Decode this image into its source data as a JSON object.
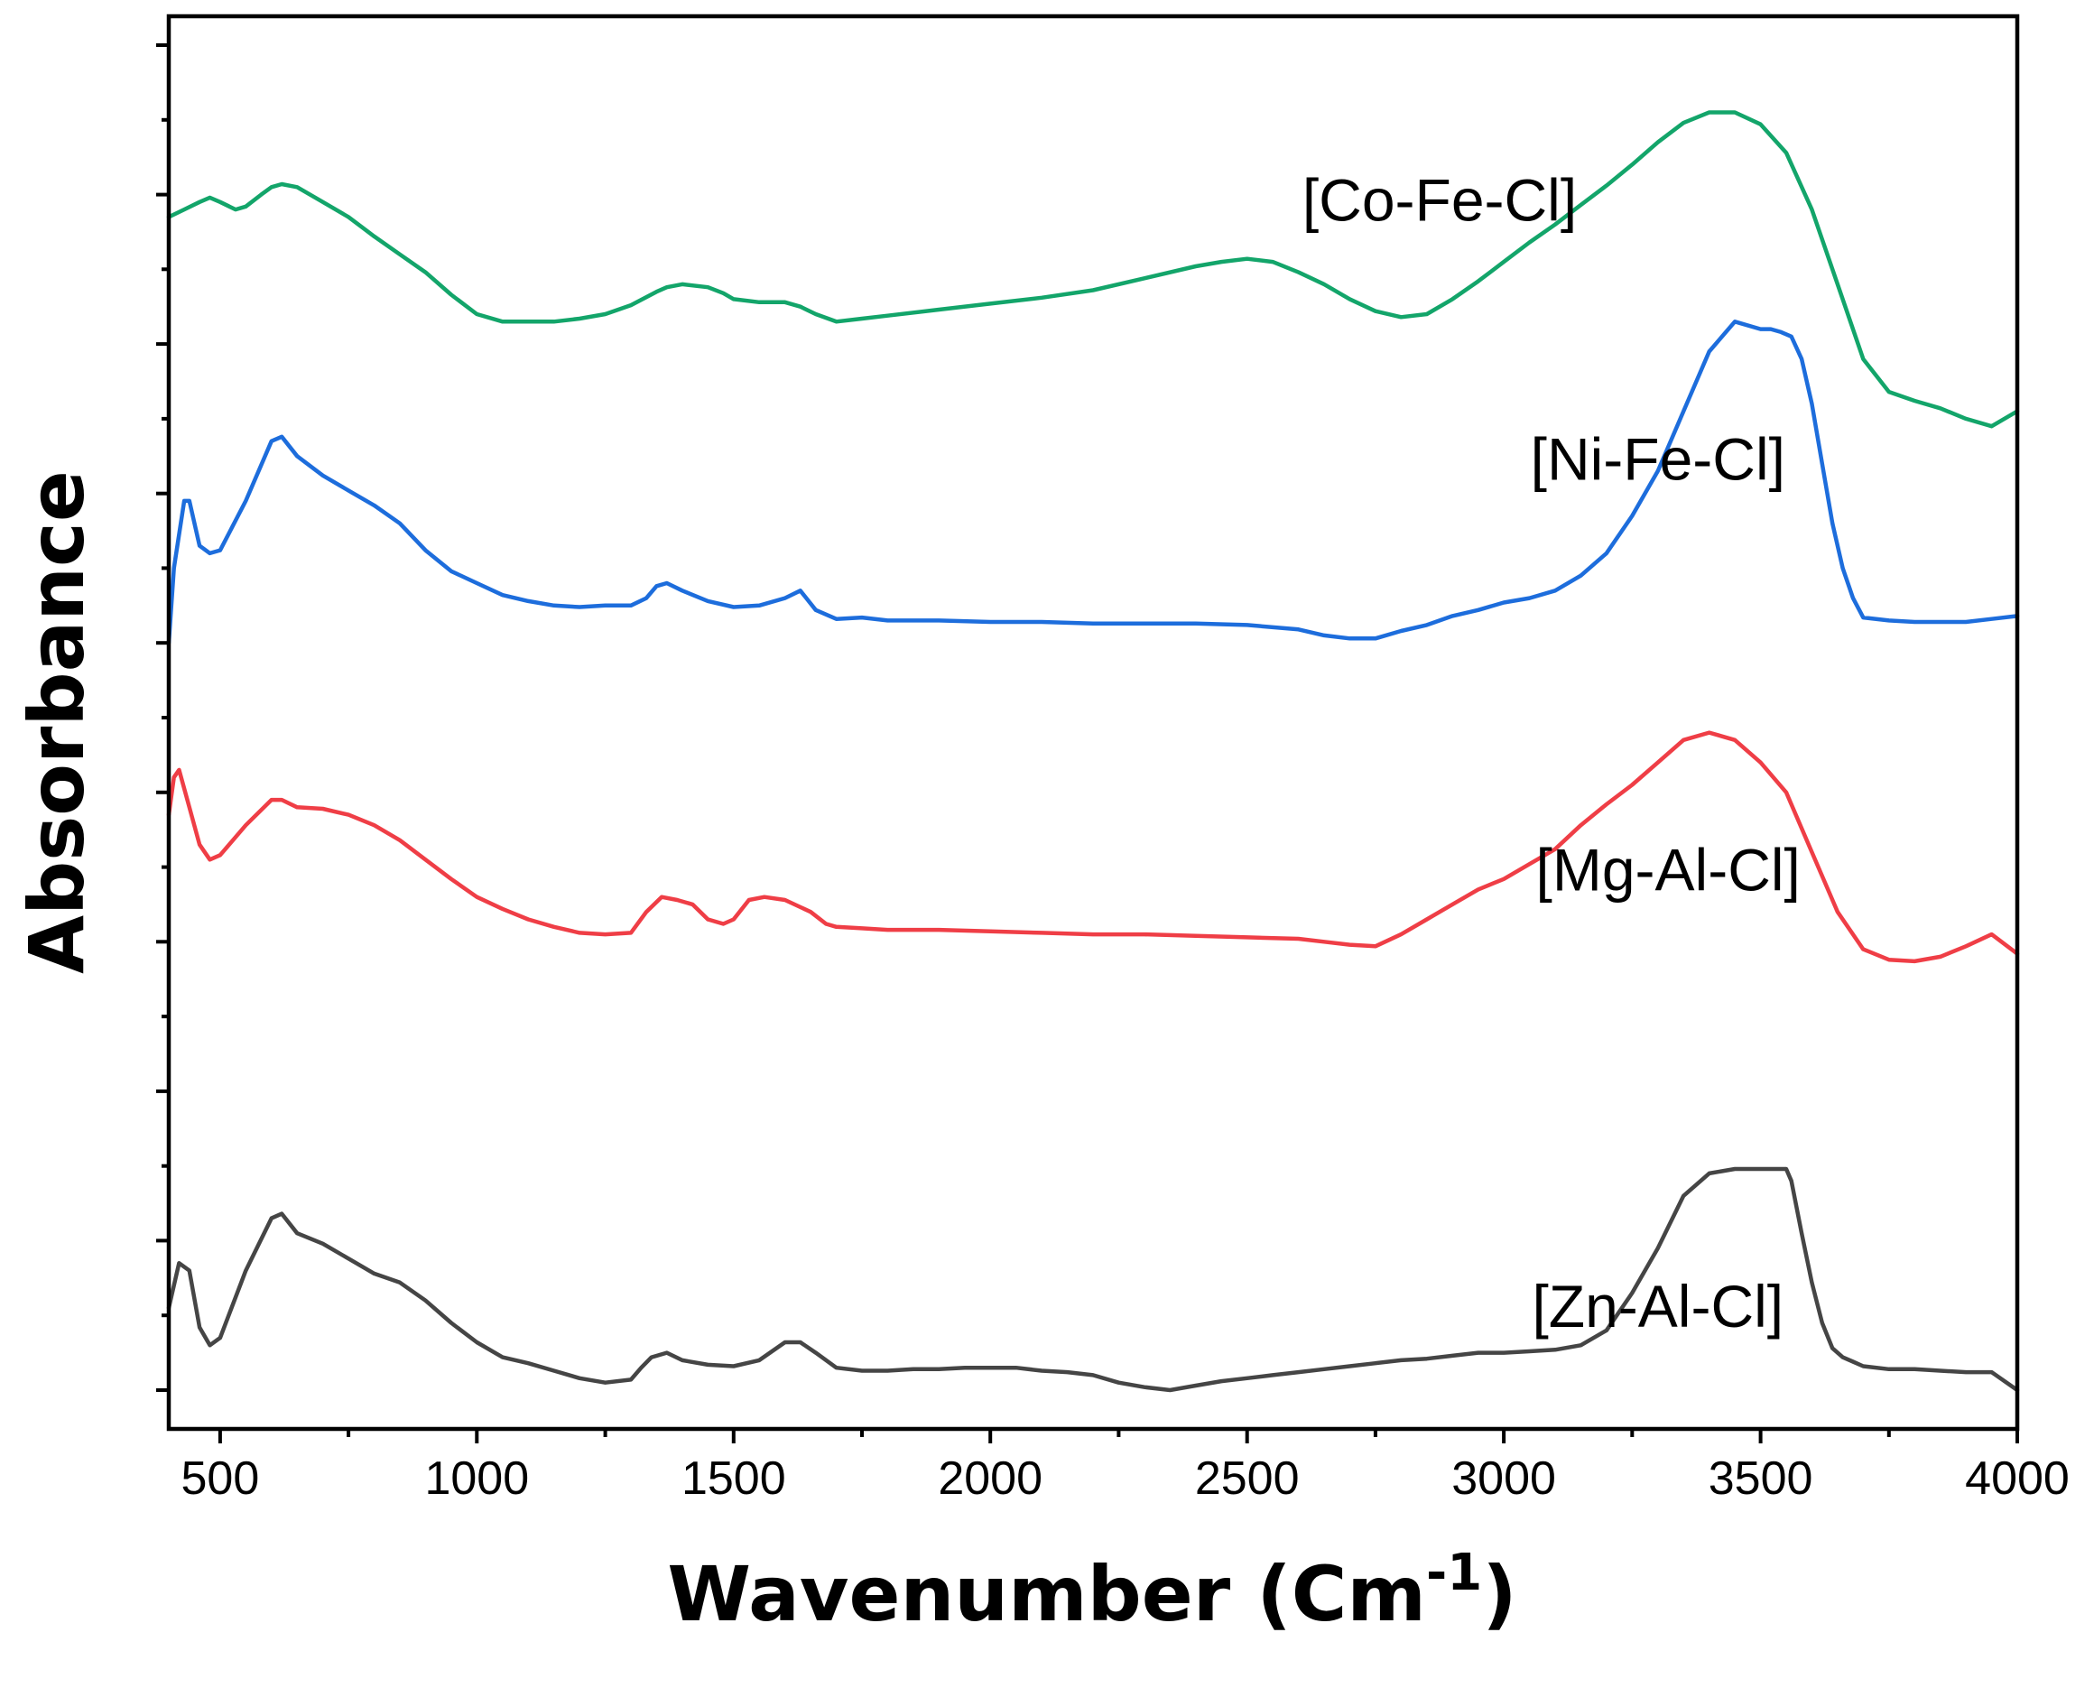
{
  "chart_data": {
    "type": "line",
    "title": "",
    "xlabel": "Wavenumber (Cm",
    "xlabel_superscript": "-1",
    "xlabel_close": ")",
    "ylabel": "Absorbance",
    "xlim": [
      400,
      4000
    ],
    "xticks": [
      500,
      1000,
      1500,
      2000,
      2500,
      3000,
      3500,
      4000
    ],
    "xtick_labels": [
      "500",
      "1000",
      "1500",
      "2000",
      "2500",
      "3000",
      "3500",
      "4000"
    ],
    "y_axis_values_shown": false,
    "ylim": [
      0,
      9
    ],
    "y_minor_step": 0.5,
    "series_order": "bottom-to-top",
    "series": [
      {
        "name": "[Zn-Al-Cl]",
        "color": "#454545",
        "label_x": 3300,
        "x": [
          400,
          420,
          440,
          460,
          480,
          500,
          550,
          600,
          620,
          650,
          700,
          750,
          800,
          850,
          900,
          950,
          1000,
          1050,
          1100,
          1150,
          1200,
          1250,
          1300,
          1320,
          1340,
          1370,
          1400,
          1450,
          1500,
          1550,
          1600,
          1630,
          1660,
          1700,
          1750,
          1800,
          1850,
          1900,
          1950,
          2000,
          2050,
          2100,
          2150,
          2200,
          2250,
          2300,
          2350,
          2400,
          2450,
          2500,
          2550,
          2600,
          2650,
          2700,
          2750,
          2800,
          2850,
          2900,
          2950,
          3000,
          3050,
          3100,
          3150,
          3200,
          3250,
          3300,
          3350,
          3400,
          3450,
          3500,
          3550,
          3560,
          3580,
          3600,
          3620,
          3640,
          3660,
          3680,
          3700,
          3750,
          3800,
          3850,
          3900,
          3950,
          4000
        ],
        "values": [
          0.55,
          0.85,
          0.8,
          0.42,
          0.3,
          0.35,
          0.8,
          1.15,
          1.18,
          1.05,
          0.98,
          0.88,
          0.78,
          0.72,
          0.6,
          0.45,
          0.32,
          0.22,
          0.18,
          0.13,
          0.08,
          0.05,
          0.07,
          0.15,
          0.22,
          0.25,
          0.2,
          0.17,
          0.16,
          0.2,
          0.32,
          0.32,
          0.25,
          0.15,
          0.13,
          0.13,
          0.14,
          0.14,
          0.15,
          0.15,
          0.15,
          0.13,
          0.12,
          0.1,
          0.05,
          0.02,
          0.0,
          0.03,
          0.06,
          0.08,
          0.1,
          0.12,
          0.14,
          0.16,
          0.18,
          0.2,
          0.21,
          0.23,
          0.25,
          0.25,
          0.26,
          0.27,
          0.3,
          0.4,
          0.65,
          0.95,
          1.3,
          1.45,
          1.48,
          1.48,
          1.48,
          1.4,
          1.05,
          0.72,
          0.45,
          0.28,
          0.22,
          0.19,
          0.16,
          0.14,
          0.14,
          0.13,
          0.12,
          0.12,
          0.0
        ]
      },
      {
        "name": "[Mg-Al-Cl]",
        "color": "#ef3e46",
        "label_x": 3320,
        "x": [
          400,
          410,
          420,
          440,
          460,
          480,
          500,
          550,
          600,
          620,
          650,
          700,
          750,
          800,
          850,
          900,
          950,
          1000,
          1050,
          1100,
          1150,
          1200,
          1250,
          1300,
          1330,
          1360,
          1390,
          1420,
          1450,
          1480,
          1500,
          1530,
          1560,
          1600,
          1650,
          1680,
          1700,
          1750,
          1800,
          1900,
          2000,
          2100,
          2200,
          2300,
          2400,
          2500,
          2600,
          2650,
          2700,
          2750,
          2800,
          2850,
          2900,
          2950,
          3000,
          3050,
          3100,
          3150,
          3200,
          3250,
          3300,
          3350,
          3400,
          3450,
          3500,
          3550,
          3600,
          3650,
          3700,
          3750,
          3800,
          3850,
          3900,
          3950,
          4000
        ],
        "values": [
          3.85,
          4.1,
          4.15,
          3.9,
          3.65,
          3.55,
          3.58,
          3.78,
          3.95,
          3.95,
          3.9,
          3.89,
          3.85,
          3.78,
          3.68,
          3.55,
          3.42,
          3.3,
          3.22,
          3.15,
          3.1,
          3.06,
          3.05,
          3.06,
          3.2,
          3.3,
          3.28,
          3.25,
          3.15,
          3.12,
          3.15,
          3.28,
          3.3,
          3.28,
          3.2,
          3.12,
          3.1,
          3.09,
          3.08,
          3.08,
          3.07,
          3.06,
          3.05,
          3.05,
          3.04,
          3.03,
          3.02,
          3.0,
          2.98,
          2.97,
          3.05,
          3.15,
          3.25,
          3.35,
          3.42,
          3.52,
          3.62,
          3.78,
          3.92,
          4.05,
          4.2,
          4.35,
          4.4,
          4.35,
          4.2,
          4.0,
          3.6,
          3.2,
          2.95,
          2.88,
          2.87,
          2.9,
          2.97,
          3.05,
          2.92
        ]
      },
      {
        "name": "[Ni-Fe-Cl]",
        "color": "#1d6ddc",
        "label_x": 3300,
        "x": [
          400,
          410,
          430,
          440,
          460,
          480,
          500,
          550,
          600,
          620,
          650,
          700,
          750,
          800,
          850,
          900,
          950,
          1000,
          1050,
          1100,
          1150,
          1200,
          1250,
          1300,
          1330,
          1350,
          1370,
          1400,
          1450,
          1500,
          1550,
          1600,
          1630,
          1660,
          1700,
          1750,
          1800,
          1900,
          2000,
          2100,
          2200,
          2300,
          2400,
          2500,
          2600,
          2650,
          2700,
          2750,
          2800,
          2850,
          2900,
          2950,
          3000,
          3050,
          3100,
          3150,
          3200,
          3250,
          3300,
          3350,
          3400,
          3450,
          3500,
          3520,
          3540,
          3560,
          3580,
          3600,
          3620,
          3640,
          3660,
          3680,
          3700,
          3750,
          3800,
          3850,
          3900,
          3950,
          4000
        ],
        "values": [
          5.0,
          5.5,
          5.95,
          5.95,
          5.65,
          5.6,
          5.62,
          5.95,
          6.35,
          6.38,
          6.25,
          6.12,
          6.02,
          5.92,
          5.8,
          5.62,
          5.48,
          5.4,
          5.32,
          5.28,
          5.25,
          5.24,
          5.25,
          5.25,
          5.3,
          5.38,
          5.4,
          5.35,
          5.28,
          5.24,
          5.25,
          5.3,
          5.35,
          5.22,
          5.16,
          5.17,
          5.15,
          5.15,
          5.14,
          5.14,
          5.13,
          5.13,
          5.13,
          5.12,
          5.09,
          5.05,
          5.03,
          5.03,
          5.08,
          5.12,
          5.18,
          5.22,
          5.27,
          5.3,
          5.35,
          5.45,
          5.6,
          5.85,
          6.15,
          6.55,
          6.95,
          7.15,
          7.1,
          7.1,
          7.08,
          7.05,
          6.9,
          6.6,
          6.2,
          5.8,
          5.5,
          5.3,
          5.17,
          5.15,
          5.14,
          5.14,
          5.14,
          5.16,
          5.18
        ]
      },
      {
        "name": "[Co-Fe-Cl]",
        "color": "#13a56a",
        "label_x": 2875,
        "x": [
          400,
          430,
          460,
          480,
          500,
          530,
          550,
          580,
          600,
          620,
          650,
          700,
          750,
          800,
          850,
          900,
          950,
          1000,
          1050,
          1100,
          1150,
          1200,
          1250,
          1300,
          1350,
          1370,
          1400,
          1450,
          1480,
          1500,
          1550,
          1600,
          1630,
          1660,
          1700,
          1750,
          1800,
          1900,
          2000,
          2100,
          2200,
          2300,
          2400,
          2450,
          2500,
          2550,
          2600,
          2650,
          2700,
          2750,
          2800,
          2850,
          2900,
          2950,
          3000,
          3050,
          3100,
          3150,
          3200,
          3250,
          3300,
          3350,
          3400,
          3450,
          3500,
          3550,
          3600,
          3650,
          3700,
          3750,
          3800,
          3850,
          3900,
          3950,
          4000
        ],
        "values": [
          7.85,
          7.9,
          7.95,
          7.98,
          7.95,
          7.9,
          7.92,
          8.0,
          8.05,
          8.07,
          8.05,
          7.95,
          7.85,
          7.72,
          7.6,
          7.48,
          7.33,
          7.2,
          7.15,
          7.15,
          7.15,
          7.17,
          7.2,
          7.26,
          7.35,
          7.38,
          7.4,
          7.38,
          7.34,
          7.3,
          7.28,
          7.28,
          7.25,
          7.2,
          7.15,
          7.17,
          7.19,
          7.23,
          7.27,
          7.31,
          7.36,
          7.44,
          7.52,
          7.55,
          7.57,
          7.55,
          7.48,
          7.4,
          7.3,
          7.22,
          7.18,
          7.2,
          7.3,
          7.42,
          7.55,
          7.68,
          7.8,
          7.93,
          8.06,
          8.2,
          8.35,
          8.48,
          8.55,
          8.55,
          8.47,
          8.28,
          7.9,
          7.4,
          6.9,
          6.68,
          6.62,
          6.57,
          6.5,
          6.45,
          6.55
        ]
      }
    ]
  }
}
